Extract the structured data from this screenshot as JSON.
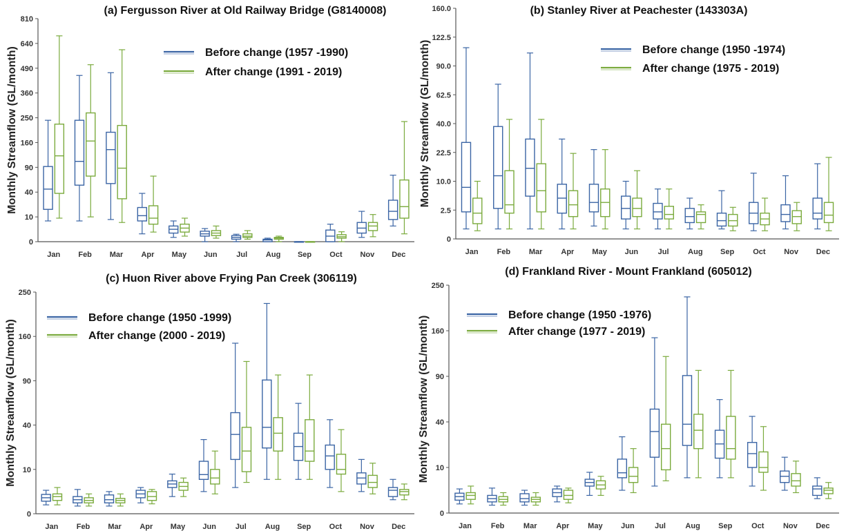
{
  "colors": {
    "before": "#3a64a4",
    "after": "#7aaa3c",
    "axis": "#555555",
    "text": "#111111"
  },
  "chart_data": [
    {
      "id": "a",
      "type": "box",
      "title": "(a) Fergusson River at Old Railway  Bridge (G8140008)",
      "ylabel": "Monthly Streamflow (GL/month)",
      "yscale": "sqrt",
      "yticks": [
        "0",
        "10",
        "40",
        "90",
        "160",
        "250",
        "360",
        "490",
        "640",
        "810"
      ],
      "ylim": [
        0,
        810
      ],
      "legend_position": "top-right",
      "categories": [
        "Jan",
        "Feb",
        "Mar",
        "Apr",
        "May",
        "Jun",
        "Jul",
        "Aug",
        "Sep",
        "Oct",
        "Nov",
        "Dec"
      ],
      "series": [
        {
          "name": "Before change (1957 -1990)",
          "boxes": [
            [
              7,
              17,
              45,
              92,
              240
            ],
            [
              7,
              52,
              105,
              240,
              450
            ],
            [
              8,
              55,
              138,
              195,
              465
            ],
            [
              1,
              7,
              11,
              19,
              38
            ],
            [
              0.3,
              1.2,
              2.5,
              4,
              7
            ],
            [
              0,
              0.5,
              1,
              1.8,
              2.8
            ],
            [
              0,
              0.1,
              0.3,
              0.6,
              0.9
            ],
            [
              0,
              0,
              0.05,
              0.1,
              0.2
            ],
            [
              0,
              0,
              0,
              0,
              0
            ],
            [
              0,
              0,
              0.5,
              2.2,
              5
            ],
            [
              0.3,
              1.2,
              3,
              6,
              15
            ],
            [
              4,
              8,
              15,
              28,
              72
            ]
          ]
        },
        {
          "name": "After change (1991 - 2019)",
          "boxes": [
            [
              9,
              38,
              120,
              225,
              690
            ],
            [
              10,
              70,
              165,
              270,
              510
            ],
            [
              6,
              30,
              88,
              220,
              600
            ],
            [
              1.5,
              5,
              9,
              21,
              70
            ],
            [
              0.5,
              1.5,
              3,
              5,
              9
            ],
            [
              0.2,
              0.6,
              1.2,
              2,
              4
            ],
            [
              0.1,
              0.3,
              0.5,
              1,
              2
            ],
            [
              0,
              0.1,
              0.2,
              0.3,
              0.5
            ],
            [
              0,
              0,
              0,
              0,
              0
            ],
            [
              0,
              0.2,
              0.4,
              0.8,
              1.6
            ],
            [
              0.4,
              2,
              4,
              6,
              12
            ],
            [
              1,
              9,
              20,
              62,
              235
            ]
          ]
        }
      ]
    },
    {
      "id": "b",
      "type": "box",
      "title": "(b)  Stanley River at Peachester (143303A)",
      "ylabel": "Monthly Streamflow (GL/month)",
      "yscale": "sqrt",
      "yticks": [
        "0",
        "2.5",
        "10.0",
        "22.5",
        "40.0",
        "62.5",
        "90.0",
        "122.5",
        "160.0"
      ],
      "ylim": [
        0,
        160
      ],
      "legend_position": "top-right",
      "categories": [
        "Jan",
        "Feb",
        "Mar",
        "Apr",
        "May",
        "Jun",
        "Jul",
        "Aug",
        "Sep",
        "Oct",
        "Nov",
        "Dec"
      ],
      "series": [
        {
          "name": "Before change (1950 -1974)",
          "boxes": [
            [
              0.3,
              2.2,
              8,
              28,
              110
            ],
            [
              0.3,
              2.8,
              12,
              38,
              72
            ],
            [
              0.3,
              5.5,
              15,
              30,
              104
            ],
            [
              0.3,
              2,
              5,
              9,
              30
            ],
            [
              0.5,
              2.2,
              4,
              9,
              24
            ],
            [
              0.3,
              1.2,
              2.8,
              5.5,
              10
            ],
            [
              0.3,
              1.2,
              2.2,
              3.8,
              7.5
            ],
            [
              0.3,
              0.8,
              1.5,
              2.8,
              5
            ],
            [
              0.3,
              0.5,
              1,
              2,
              7
            ],
            [
              0.2,
              0.7,
              2,
              4,
              13
            ],
            [
              0.3,
              0.9,
              1.8,
              3.5,
              12
            ],
            [
              0.3,
              1.2,
              2,
              5,
              17
            ]
          ]
        },
        {
          "name": "After change (1975 - 2019)",
          "boxes": [
            [
              0.2,
              0.7,
              2,
              5,
              10
            ],
            [
              0.3,
              2,
              3.5,
              14,
              43
            ],
            [
              0.3,
              2.2,
              7,
              17,
              43
            ],
            [
              0.3,
              1.5,
              3.5,
              7,
              22
            ],
            [
              0.3,
              1.5,
              4,
              7.5,
              24
            ],
            [
              0.3,
              1.5,
              2.8,
              5,
              14
            ],
            [
              0.3,
              1.2,
              1.8,
              3.2,
              7.5
            ],
            [
              0.3,
              0.8,
              1.8,
              2.2,
              3.5
            ],
            [
              0.2,
              0.5,
              1,
              1.8,
              3
            ],
            [
              0.2,
              0.6,
              1.2,
              2,
              5
            ],
            [
              0.2,
              0.7,
              1.5,
              2.4,
              4
            ],
            [
              0.2,
              0.8,
              1.7,
              4,
              20
            ]
          ]
        }
      ]
    },
    {
      "id": "c",
      "type": "box",
      "title": "(c) Huon River above Frying Pan Creek (306119)",
      "ylabel": "Monthly Streamflow (GL/month)",
      "yscale": "sqrt",
      "yticks": [
        "0",
        "10",
        "40",
        "90",
        "160",
        "250"
      ],
      "ylim": [
        0,
        250
      ],
      "legend_position": "top-left",
      "categories": [
        "Jan",
        "Feb",
        "Mar",
        "Apr",
        "May",
        "Jun",
        "Jul",
        "Aug",
        "Sep",
        "Oct",
        "Nov",
        "Dec"
      ],
      "series": [
        {
          "name": "Before change (1950 -1999)",
          "boxes": [
            [
              0.4,
              0.8,
              1.3,
              1.9,
              2.8
            ],
            [
              0.3,
              0.6,
              1,
              1.5,
              3
            ],
            [
              0.3,
              0.6,
              1,
              1.8,
              2.5
            ],
            [
              0.6,
              1.3,
              2,
              2.8,
              3.5
            ],
            [
              1.5,
              3.5,
              4.5,
              5.5,
              8
            ],
            [
              2.5,
              6,
              7.8,
              14,
              28
            ],
            [
              3.5,
              15,
              32,
              52,
              148
            ],
            [
              6,
              22,
              38,
              91,
              225
            ],
            [
              6,
              14.5,
              23,
              33,
              62
            ],
            [
              3.5,
              10,
              17,
              24,
              45
            ],
            [
              2.5,
              4.5,
              6.5,
              8.5,
              15
            ],
            [
              1,
              1.5,
              2.8,
              3.5,
              6
            ]
          ]
        },
        {
          "name": "After change (2000 - 2019)",
          "boxes": [
            [
              0.4,
              0.9,
              1.5,
              2,
              3.5
            ],
            [
              0.3,
              0.6,
              0.9,
              1.3,
              2
            ],
            [
              0.3,
              0.6,
              0.9,
              1.2,
              2
            ],
            [
              0.5,
              0.9,
              1.5,
              2.5,
              3
            ],
            [
              1.5,
              2.8,
              3.8,
              5,
              6.5
            ],
            [
              2,
              4.5,
              6.5,
              10,
              20
            ],
            [
              5,
              9,
              20,
              38,
              118
            ],
            [
              6,
              20,
              33,
              47,
              98
            ],
            [
              6,
              14,
              20,
              45,
              98
            ],
            [
              2.5,
              8,
              10,
              18,
              36
            ],
            [
              2,
              3.5,
              5,
              7.5,
              13
            ],
            [
              1,
              1.8,
              2.5,
              3,
              4.5
            ]
          ]
        }
      ]
    },
    {
      "id": "d",
      "type": "box",
      "title": "(d) Frankland River - Mount Frankland  (605012)",
      "ylabel": "Monthly Streamflow (GL/month)",
      "yscale": "sqrt",
      "yticks": [
        "0",
        "10",
        "40",
        "90",
        "160",
        "250"
      ],
      "ylim": [
        0,
        250
      ],
      "legend_position": "top-left",
      "categories": [
        "Jan",
        "Feb",
        "Mar",
        "Apr",
        "May",
        "Jun",
        "Jul",
        "Aug",
        "Sep",
        "Oct",
        "Nov",
        "Dec"
      ],
      "series": [
        {
          "name": "Before change (1950 -1976)",
          "boxes": [
            [
              0.4,
              0.8,
              1.3,
              1.9,
              2.8
            ],
            [
              0.3,
              0.6,
              1,
              1.5,
              3
            ],
            [
              0.3,
              0.6,
              1,
              1.8,
              2.5
            ],
            [
              0.6,
              1.3,
              2,
              2.8,
              3.5
            ],
            [
              1.5,
              3.5,
              4.5,
              5.5,
              8
            ],
            [
              2.5,
              6,
              7.8,
              14,
              28
            ],
            [
              3.5,
              15,
              32,
              52,
              148
            ],
            [
              6,
              22,
              38,
              91,
              225
            ],
            [
              6,
              14.5,
              23,
              33,
              62
            ],
            [
              3.5,
              10,
              17,
              24,
              45
            ],
            [
              2.5,
              4.5,
              6.5,
              8.5,
              15
            ],
            [
              1,
              1.5,
              2.8,
              3.5,
              6
            ]
          ]
        },
        {
          "name": "After change (1977 - 2019)",
          "boxes": [
            [
              0.4,
              0.9,
              1.5,
              2,
              3.5
            ],
            [
              0.3,
              0.6,
              0.9,
              1.3,
              2
            ],
            [
              0.3,
              0.6,
              0.9,
              1.2,
              2
            ],
            [
              0.5,
              0.9,
              1.5,
              2.5,
              3
            ],
            [
              1.5,
              2.8,
              3.8,
              5,
              6.5
            ],
            [
              2,
              4.5,
              6.5,
              10,
              20
            ],
            [
              5,
              9,
              20,
              38,
              118
            ],
            [
              6,
              20,
              33,
              47,
              98
            ],
            [
              6,
              14,
              20,
              45,
              98
            ],
            [
              2.5,
              8,
              10,
              18,
              36
            ],
            [
              2,
              3.5,
              5,
              7.5,
              13
            ],
            [
              1,
              1.8,
              2.5,
              3,
              4.5
            ]
          ]
        }
      ]
    }
  ]
}
